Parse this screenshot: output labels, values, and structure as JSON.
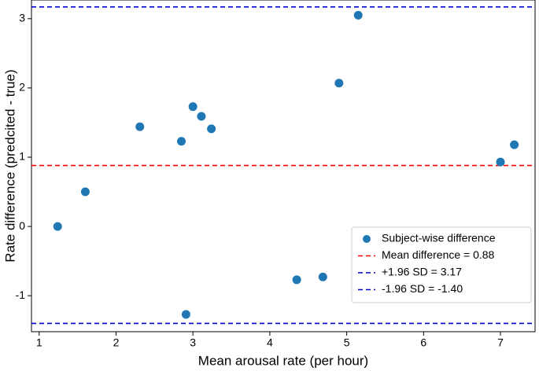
{
  "chart_data": {
    "type": "scatter",
    "xlabel": "Mean arousal rate (per hour)",
    "ylabel": "Rate difference (predcited - true)",
    "series": [
      {
        "name": "Subject-wise difference",
        "color": "#1f77b4",
        "x": [
          1.24,
          1.6,
          2.31,
          2.85,
          3.0,
          3.11,
          3.24,
          2.91,
          4.35,
          4.69,
          4.9,
          5.15,
          7.0,
          7.18
        ],
        "values": [
          0.0,
          0.5,
          1.44,
          1.23,
          1.73,
          1.59,
          1.41,
          -1.27,
          -0.77,
          -0.73,
          2.07,
          3.05,
          0.93,
          1.18
        ]
      }
    ],
    "hlines": [
      {
        "name": "Mean difference = 0.88",
        "value": 0.88,
        "color": "#ff0000"
      },
      {
        "name": "+1.96 SD = 3.17",
        "value": 3.17,
        "color": "#0000cc"
      },
      {
        "name": " -1.96 SD = -1.40",
        "value": -1.4,
        "color": "#0000cc"
      }
    ],
    "xlim": [
      0.9,
      7.45
    ],
    "xticks": [
      1,
      2,
      3,
      4,
      5,
      6,
      7
    ],
    "ylim": [
      -1.52,
      3.27
    ],
    "yticks": [
      -1,
      0,
      1,
      2,
      3
    ],
    "legend": "lower right"
  }
}
